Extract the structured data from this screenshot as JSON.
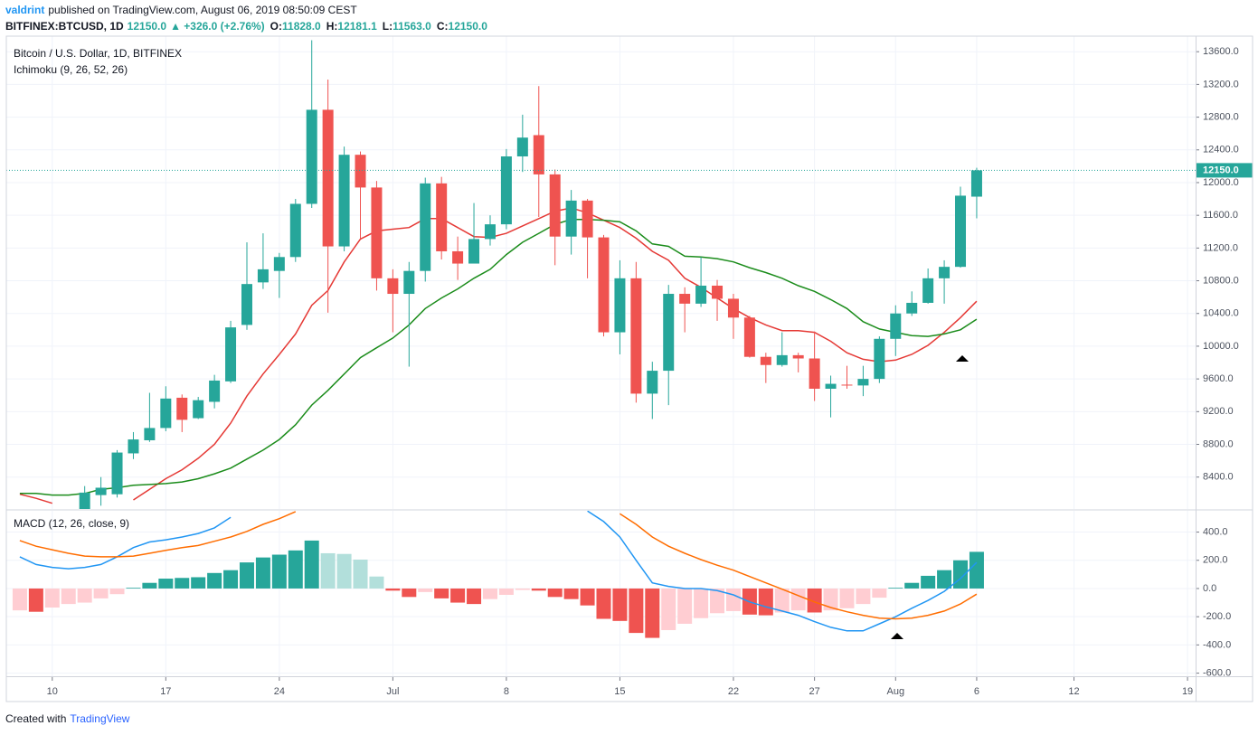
{
  "header": {
    "author": "valdrint",
    "published": "published on TradingView.com, August 06, 2019 08:50:09 CEST",
    "symbol": "BITFINEX:BTCUSD, 1D",
    "price": "12150.0",
    "change": "▲ +326.0 (+2.76%)",
    "ohlc": [
      {
        "label": "O:",
        "value": "11828.0"
      },
      {
        "label": "H:",
        "value": "12181.1"
      },
      {
        "label": "L:",
        "value": "11563.0"
      },
      {
        "label": "C:",
        "value": "12150.0"
      }
    ]
  },
  "footer": {
    "created_with": "Created with",
    "brand": "TradingView"
  },
  "chart_data": [
    {
      "type": "candlestick",
      "title": "Bitcoin / U.S. Dollar, 1D, BITFINEX",
      "subtitle": "Ichimoku (9, 26, 52, 26)",
      "x": [
        "2019-06-08",
        "2019-06-09",
        "2019-06-10",
        "2019-06-11",
        "2019-06-12",
        "2019-06-13",
        "2019-06-14",
        "2019-06-15",
        "2019-06-16",
        "2019-06-17",
        "2019-06-18",
        "2019-06-19",
        "2019-06-20",
        "2019-06-21",
        "2019-06-22",
        "2019-06-23",
        "2019-06-24",
        "2019-06-25",
        "2019-06-26",
        "2019-06-27",
        "2019-06-28",
        "2019-06-29",
        "2019-06-30",
        "2019-07-01",
        "2019-07-02",
        "2019-07-03",
        "2019-07-04",
        "2019-07-05",
        "2019-07-06",
        "2019-07-07",
        "2019-07-08",
        "2019-07-09",
        "2019-07-10",
        "2019-07-11",
        "2019-07-12",
        "2019-07-13",
        "2019-07-14",
        "2019-07-15",
        "2019-07-16",
        "2019-07-17",
        "2019-07-18",
        "2019-07-19",
        "2019-07-20",
        "2019-07-21",
        "2019-07-22",
        "2019-07-23",
        "2019-07-24",
        "2019-07-25",
        "2019-07-26",
        "2019-07-27",
        "2019-07-28",
        "2019-07-29",
        "2019-07-30",
        "2019-07-31",
        "2019-08-01",
        "2019-08-02",
        "2019-08-03",
        "2019-08-04",
        "2019-08-05",
        "2019-08-06"
      ],
      "open": [
        null,
        null,
        null,
        null,
        8010,
        8180,
        8190,
        8690,
        8850,
        9000,
        9370,
        9120,
        9320,
        9570,
        10260,
        10780,
        10920,
        11090,
        11740,
        12890,
        11220,
        12340,
        11940,
        10830,
        10640,
        10920,
        11990,
        11160,
        11010,
        11310,
        11490,
        12320,
        12580,
        12100,
        11340,
        11780,
        11330,
        10170,
        10830,
        9420,
        9700,
        10640,
        10520,
        10740,
        10580,
        10350,
        9870,
        9770,
        9890,
        9850,
        9480,
        9530,
        9520,
        9600,
        10090,
        10400,
        10530,
        10830,
        10970,
        11828
      ],
      "high": [
        null,
        null,
        null,
        null,
        8290,
        8400,
        8730,
        8950,
        9430,
        9510,
        9410,
        9380,
        9650,
        10310,
        11270,
        11380,
        11140,
        11800,
        13740,
        13260,
        12440,
        12380,
        12020,
        10940,
        11030,
        12060,
        12070,
        11340,
        11750,
        11600,
        12410,
        12830,
        13180,
        12160,
        11910,
        11800,
        11360,
        11050,
        11030,
        9810,
        10750,
        10720,
        11090,
        10810,
        10640,
        10370,
        9920,
        10170,
        9920,
        10180,
        9640,
        9760,
        9760,
        10120,
        10500,
        10670,
        10950,
        11050,
        11950,
        12181.1
      ],
      "low": [
        null,
        null,
        null,
        null,
        7950,
        8050,
        8150,
        8620,
        8830,
        8960,
        8950,
        9110,
        9240,
        9550,
        10200,
        10700,
        10590,
        11030,
        11690,
        10410,
        11160,
        11310,
        10680,
        10170,
        9750,
        10790,
        11060,
        10810,
        11030,
        11230,
        11430,
        12130,
        11580,
        10990,
        11120,
        10830,
        10120,
        9900,
        9310,
        9110,
        9280,
        10170,
        10480,
        10310,
        10090,
        9860,
        9550,
        9750,
        9680,
        9330,
        9130,
        9480,
        9390,
        9550,
        9880,
        10370,
        10520,
        10520,
        10960,
        11563
      ],
      "close": [
        null,
        null,
        null,
        null,
        8210,
        8270,
        8700,
        8860,
        9000,
        9360,
        9100,
        9340,
        9580,
        10230,
        10760,
        10940,
        11090,
        11740,
        12890,
        11220,
        12340,
        11940,
        10830,
        10640,
        10920,
        11990,
        11160,
        11010,
        11310,
        11490,
        12320,
        12550,
        12100,
        11340,
        11780,
        11330,
        10170,
        10830,
        9420,
        9700,
        10640,
        10520,
        10740,
        10580,
        10350,
        9870,
        9770,
        9890,
        9850,
        9480,
        9540,
        9520,
        9600,
        10090,
        10400,
        10530,
        10830,
        10970,
        11840,
        12150
      ],
      "up_color": "#26a69a",
      "down_color": "#ef5350",
      "lines": [
        {
          "color": "#e53935",
          "values": [
            8190,
            8140,
            8080,
            null,
            null,
            null,
            null,
            8120,
            8250,
            8380,
            8490,
            8630,
            8800,
            9060,
            9390,
            9660,
            9900,
            10150,
            10500,
            10680,
            11030,
            11310,
            11410,
            11430,
            11450,
            11560,
            11560,
            11450,
            11340,
            11330,
            11380,
            11470,
            11560,
            11650,
            11690,
            11630,
            11540,
            11450,
            11320,
            11160,
            11050,
            10830,
            10720,
            10590,
            10460,
            10350,
            10260,
            10190,
            10190,
            10170,
            10060,
            9920,
            9840,
            9810,
            9830,
            9900,
            10010,
            10170,
            10350,
            10550
          ]
        },
        {
          "color": "#1b8c1b",
          "values": [
            8200,
            8200,
            8180,
            8180,
            8200,
            8250,
            8270,
            8300,
            8310,
            8320,
            8340,
            8380,
            8440,
            8510,
            8620,
            8730,
            8860,
            9040,
            9280,
            9460,
            9660,
            9860,
            9980,
            10100,
            10260,
            10460,
            10590,
            10700,
            10830,
            10940,
            11120,
            11270,
            11380,
            11490,
            11550,
            11550,
            11540,
            11520,
            11410,
            11250,
            11220,
            11100,
            11090,
            11070,
            11030,
            10960,
            10900,
            10830,
            10740,
            10670,
            10570,
            10460,
            10300,
            10210,
            10170,
            10130,
            10120,
            10150,
            10200,
            10330
          ]
        }
      ],
      "xlim": [
        "2019-06-07",
        "2019-08-20"
      ],
      "ylim": [
        8010,
        13790
      ],
      "yticks": [
        {
          "value": 8400,
          "label": "8400.0"
        },
        {
          "value": 8800,
          "label": "8800.0"
        },
        {
          "value": 9200,
          "label": "9200.0"
        },
        {
          "value": 9600,
          "label": "9600.0"
        },
        {
          "value": 10000,
          "label": "10000.0"
        },
        {
          "value": 10400,
          "label": "10400.0"
        },
        {
          "value": 10800,
          "label": "10800.0"
        },
        {
          "value": 11200,
          "label": "11200.0"
        },
        {
          "value": 11600,
          "label": "11600.0"
        },
        {
          "value": 12000,
          "label": "12000.0"
        },
        {
          "value": 12400,
          "label": "12400.0"
        },
        {
          "value": 12800,
          "label": "12800.0"
        },
        {
          "value": 13200,
          "label": "13200.0"
        },
        {
          "value": 13600,
          "label": "13600.0"
        }
      ],
      "grid": true,
      "last_price": {
        "value": 12150,
        "label": "12150.0",
        "color": "#26a69a"
      }
    },
    {
      "type": "macd",
      "title": "MACD (12, 26, close, 9)",
      "x": [
        "2019-06-08",
        "2019-06-09",
        "2019-06-10",
        "2019-06-11",
        "2019-06-12",
        "2019-06-13",
        "2019-06-14",
        "2019-06-15",
        "2019-06-16",
        "2019-06-17",
        "2019-06-18",
        "2019-06-19",
        "2019-06-20",
        "2019-06-21",
        "2019-06-22",
        "2019-06-23",
        "2019-06-24",
        "2019-06-25",
        "2019-06-26",
        "2019-06-27",
        "2019-06-28",
        "2019-06-29",
        "2019-06-30",
        "2019-07-01",
        "2019-07-02",
        "2019-07-03",
        "2019-07-04",
        "2019-07-05",
        "2019-07-06",
        "2019-07-07",
        "2019-07-08",
        "2019-07-09",
        "2019-07-10",
        "2019-07-11",
        "2019-07-12",
        "2019-07-13",
        "2019-07-14",
        "2019-07-15",
        "2019-07-16",
        "2019-07-17",
        "2019-07-18",
        "2019-07-19",
        "2019-07-20",
        "2019-07-21",
        "2019-07-22",
        "2019-07-23",
        "2019-07-24",
        "2019-07-25",
        "2019-07-26",
        "2019-07-27",
        "2019-07-28",
        "2019-07-29",
        "2019-07-30",
        "2019-07-31",
        "2019-08-01",
        "2019-08-02",
        "2019-08-03",
        "2019-08-04",
        "2019-08-05",
        "2019-08-06"
      ],
      "histogram": {
        "values": [
          -155,
          -165,
          -135,
          -110,
          -100,
          -70,
          -40,
          5,
          40,
          70,
          75,
          80,
          110,
          130,
          185,
          220,
          240,
          270,
          340,
          250,
          245,
          205,
          85,
          -15,
          -60,
          -25,
          -70,
          -100,
          -110,
          -75,
          -45,
          -10,
          -15,
          -60,
          -75,
          -120,
          -215,
          -230,
          -315,
          -350,
          -295,
          -250,
          -210,
          -175,
          -160,
          -185,
          -190,
          -170,
          -155,
          -170,
          -155,
          -140,
          -110,
          -65,
          5,
          40,
          90,
          130,
          200,
          260
        ],
        "colors": {
          "up_rising": "#26a69a",
          "up_falling": "#b2dfdb",
          "down_falling": "#ef5350",
          "down_rising": "#ffcdd2"
        }
      },
      "lines": [
        {
          "color": "#2196f3",
          "values": [
            225,
            170,
            150,
            140,
            150,
            170,
            225,
            290,
            330,
            345,
            365,
            390,
            430,
            505,
            null,
            null,
            null,
            null,
            null,
            null,
            null,
            null,
            null,
            null,
            null,
            null,
            null,
            null,
            null,
            null,
            null,
            null,
            null,
            null,
            null,
            550,
            475,
            365,
            200,
            40,
            15,
            0,
            0,
            -15,
            -45,
            -95,
            -130,
            -160,
            -190,
            -235,
            -275,
            -300,
            -300,
            -250,
            -200,
            -140,
            -85,
            -20,
            70,
            185
          ]
        },
        {
          "color": "#ff6d00",
          "values": [
            340,
            300,
            275,
            250,
            230,
            225,
            225,
            230,
            250,
            270,
            290,
            305,
            335,
            365,
            405,
            455,
            495,
            545,
            null,
            null,
            null,
            null,
            null,
            null,
            null,
            null,
            null,
            null,
            null,
            null,
            null,
            null,
            null,
            null,
            null,
            null,
            null,
            530,
            455,
            365,
            300,
            250,
            205,
            165,
            130,
            85,
            40,
            -5,
            -50,
            -95,
            -135,
            -165,
            -190,
            -210,
            -215,
            -210,
            -190,
            -160,
            -110,
            -40
          ]
        }
      ],
      "xlim": [
        "2019-06-07",
        "2019-08-20"
      ],
      "xticks": [
        {
          "value": "2019-06-10",
          "label": "10"
        },
        {
          "value": "2019-06-17",
          "label": "17"
        },
        {
          "value": "2019-06-24",
          "label": "24"
        },
        {
          "value": "2019-07-01",
          "label": "Jul"
        },
        {
          "value": "2019-07-08",
          "label": "8"
        },
        {
          "value": "2019-07-15",
          "label": "15"
        },
        {
          "value": "2019-07-22",
          "label": "22"
        },
        {
          "value": "2019-07-27",
          "label": "27"
        },
        {
          "value": "2019-08-01",
          "label": "Aug"
        },
        {
          "value": "2019-08-06",
          "label": "6"
        },
        {
          "value": "2019-08-12",
          "label": "12"
        },
        {
          "value": "2019-08-19",
          "label": "19"
        }
      ],
      "ylim": [
        -622,
        551
      ],
      "yticks": [
        {
          "value": 400,
          "label": "400.0"
        },
        {
          "value": 200,
          "label": "200.0"
        },
        {
          "value": 0,
          "label": "0.0"
        },
        {
          "value": -200,
          "label": "-200.0"
        },
        {
          "value": -400,
          "label": "-400.0"
        },
        {
          "value": -600,
          "label": "-600.0"
        }
      ],
      "grid": true
    }
  ]
}
